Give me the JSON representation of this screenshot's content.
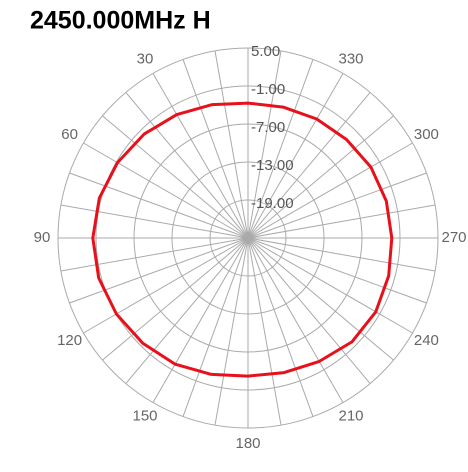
{
  "chart_data": {
    "type": "polar",
    "title": "2450.000MHz  H",
    "theta": [
      0,
      15,
      30,
      45,
      60,
      75,
      90,
      105,
      120,
      135,
      150,
      165,
      180,
      195,
      210,
      225,
      240,
      255,
      270,
      285,
      300,
      315,
      330,
      345
    ],
    "values": [
      -3.7,
      -3.2,
      -2.5,
      -1.8,
      -1.2,
      -0.7,
      -0.5,
      -0.6,
      -1.0,
      -1.5,
      -2.0,
      -2.7,
      -3.2,
      -3.0,
      -2.5,
      -1.8,
      -1.7,
      -2.0,
      -2.3,
      -2.4,
      -2.6,
      -3.0,
      -3.3,
      -3.6
    ],
    "color": "#e8101a",
    "rlim": [
      -25,
      5
    ],
    "rticks": [
      {
        "value": 5,
        "label": "5.00"
      },
      {
        "value": -1,
        "label": "-1.00"
      },
      {
        "value": -7,
        "label": "-7.00"
      },
      {
        "value": -13,
        "label": "-13.00"
      },
      {
        "value": -19,
        "label": "-19.00"
      }
    ],
    "thetaticks": [
      30,
      60,
      90,
      120,
      150,
      180,
      210,
      240,
      270,
      300,
      330
    ],
    "thetagrid": [
      0,
      10,
      20,
      30,
      40,
      50,
      60,
      70,
      80,
      90,
      100,
      110,
      120,
      130,
      140,
      150,
      160,
      170,
      180,
      190,
      200,
      210,
      220,
      230,
      240,
      250,
      260,
      270,
      280,
      290,
      300,
      310,
      320,
      330,
      340,
      350
    ],
    "direction": "counterclockwise",
    "zero": "top",
    "grid": true
  }
}
